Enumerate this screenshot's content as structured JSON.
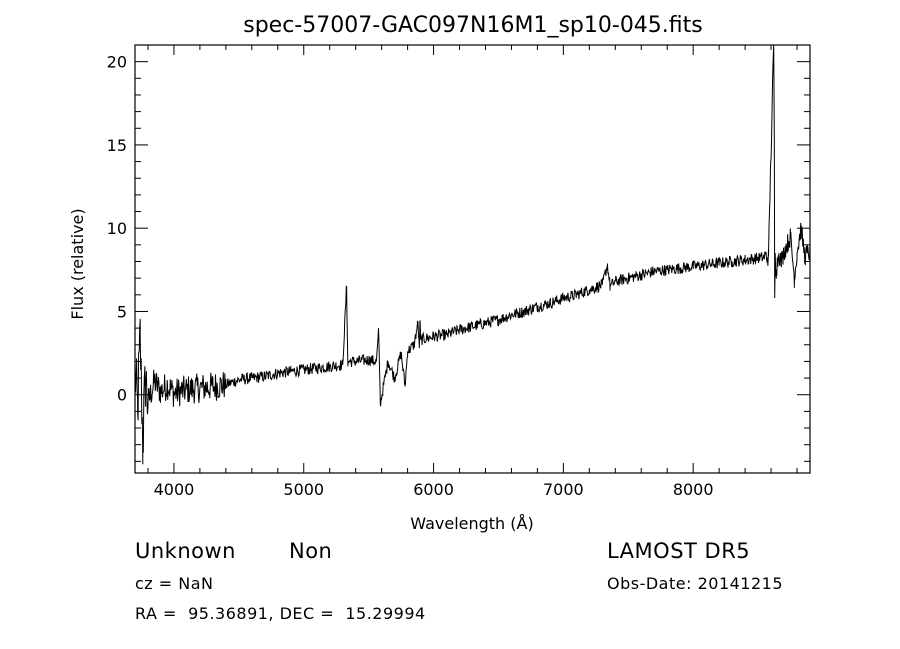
{
  "chart_data": {
    "type": "line",
    "title": "spec-57007-GAC097N16M1_sp10-045.fits",
    "xlabel": "Wavelength (Å)",
    "ylabel": "Flux (relative)",
    "xlim": [
      3700,
      8900
    ],
    "ylim": [
      -4.7,
      21.0
    ],
    "x_ticks": [
      4000,
      5000,
      6000,
      7000,
      8000
    ],
    "y_ticks": [
      0,
      5,
      10,
      15,
      20
    ],
    "grid": false,
    "legend": "none",
    "line_color": "#000000",
    "series": [
      {
        "x": [
          3700,
          3720,
          3740,
          3760,
          3780,
          3800,
          3850,
          3900,
          3950,
          4000,
          4100,
          4200,
          4300,
          4400,
          4500,
          4600,
          4700,
          4800,
          4900,
          5000,
          5100,
          5200,
          5300,
          5330,
          5340,
          5350,
          5400,
          5500,
          5560,
          5577,
          5590,
          5650,
          5700,
          5750,
          5780,
          5800,
          5850,
          5880,
          5890,
          5895,
          5900,
          5950,
          6000,
          6100,
          6200,
          6300,
          6400,
          6500,
          6600,
          6700,
          6800,
          6900,
          7000,
          7100,
          7200,
          7300,
          7340,
          7360,
          7400,
          7500,
          7600,
          7700,
          7800,
          7900,
          8000,
          8100,
          8200,
          8300,
          8400,
          8500,
          8580,
          8620,
          8625,
          8628,
          8632,
          8640,
          8660,
          8680,
          8700,
          8750,
          8780,
          8800,
          8830,
          8860,
          8880,
          8900
        ],
        "y": [
          1.5,
          -1.0,
          3.5,
          -3.0,
          1.0,
          -0.5,
          0.8,
          0.2,
          0.6,
          0.1,
          0.3,
          0.4,
          0.5,
          0.6,
          0.9,
          1.0,
          1.1,
          1.3,
          1.4,
          1.5,
          1.6,
          1.7,
          1.8,
          6.5,
          1.8,
          2.0,
          2.0,
          2.1,
          2.0,
          3.8,
          -0.5,
          2.0,
          1.0,
          2.5,
          0.5,
          2.6,
          3.0,
          4.3,
          2.8,
          4.4,
          3.3,
          3.4,
          3.5,
          3.6,
          3.9,
          4.1,
          4.3,
          4.5,
          4.8,
          5.0,
          5.3,
          5.5,
          5.8,
          6.0,
          6.3,
          6.6,
          7.8,
          6.5,
          6.8,
          7.0,
          7.2,
          7.4,
          7.5,
          7.6,
          7.7,
          7.8,
          7.9,
          8.0,
          8.1,
          8.2,
          8.3,
          21.0,
          15.5,
          5.8,
          8.5,
          7.5,
          8.5,
          8.0,
          8.6,
          9.5,
          7.0,
          8.5,
          10.0,
          8.3,
          8.5,
          8.5
        ]
      }
    ]
  },
  "info": {
    "object_class": "Unknown",
    "subclass": "Non",
    "survey": "LAMOST DR5",
    "redshift": "cz = NaN",
    "obs_date": "Obs-Date: 20141215",
    "coords": "RA =  95.36891, DEC =  15.29994"
  }
}
